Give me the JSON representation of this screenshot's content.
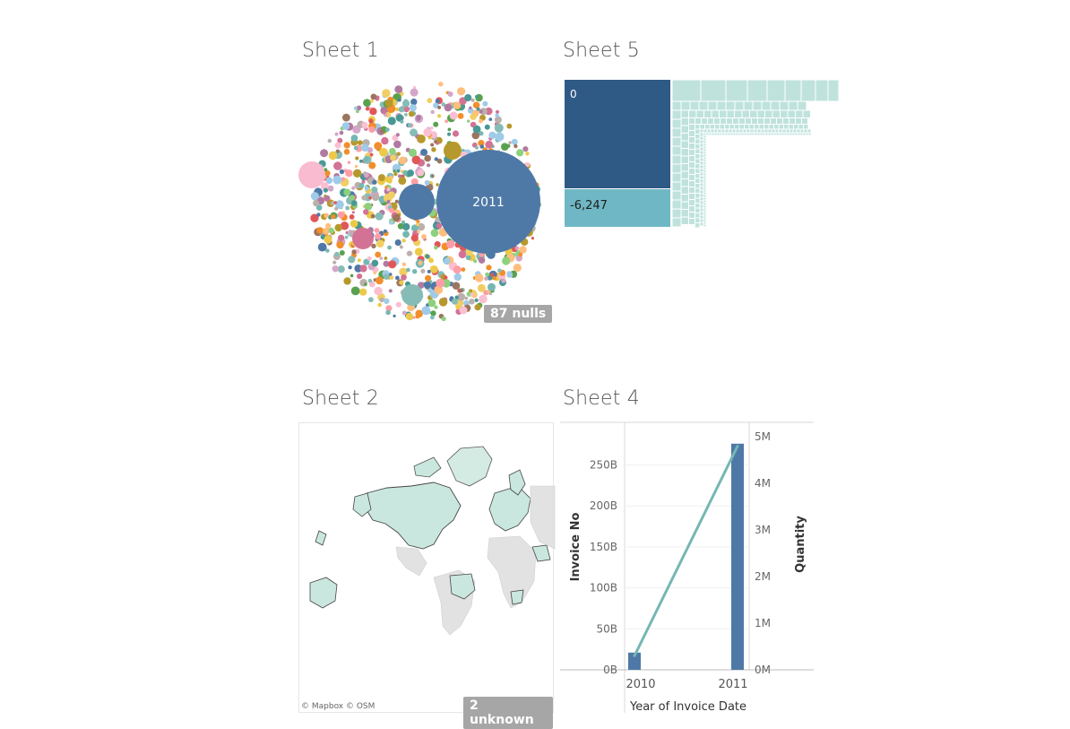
{
  "sheets": [
    {
      "id": "sheet1",
      "title": "Sheet 1"
    },
    {
      "id": "sheet5",
      "title": "Sheet 5"
    },
    {
      "id": "sheet2",
      "title": "Sheet 2"
    },
    {
      "id": "sheet4",
      "title": "Sheet 4"
    }
  ],
  "sheet1": {
    "big_bubble_label": "2011",
    "nulls_badge": "87 nulls"
  },
  "sheet5": {
    "tile_labels": [
      "0",
      "-6,247"
    ]
  },
  "sheet2": {
    "attribution": "© Mapbox © OSM",
    "unknown_badge": "2 unknown"
  },
  "colors": {
    "steel_blue": "#4e79a7",
    "teal": "#76b7b2",
    "light_teal": "#bfe3dc",
    "dark_blue": "#2f5a86",
    "pink": "#f8bbd0",
    "map_land": "#c9e7de",
    "map_gray": "#e2e2e2"
  },
  "chart_data": [
    {
      "type": "bar",
      "sheet": "Sheet 4",
      "xlabel": "Year of Invoice Date",
      "categories": [
        "2010",
        "2011"
      ],
      "series": [
        {
          "name": "Invoice No",
          "kind": "bar",
          "axis": "left",
          "values": [
            21,
            276
          ]
        },
        {
          "name": "Quantity",
          "kind": "line",
          "axis": "right",
          "values": [
            0.3,
            4.8
          ]
        }
      ],
      "left_axis": {
        "label": "Invoice No",
        "ticks": [
          "0B",
          "50B",
          "100B",
          "150B",
          "200B",
          "250B"
        ],
        "ylim": [
          0,
          290
        ],
        "unit": "B"
      },
      "right_axis": {
        "label": "Quantity",
        "ticks": [
          "0M",
          "1M",
          "2M",
          "3M",
          "4M",
          "5M"
        ],
        "ylim": [
          0,
          5.1
        ],
        "unit": "M"
      }
    }
  ]
}
